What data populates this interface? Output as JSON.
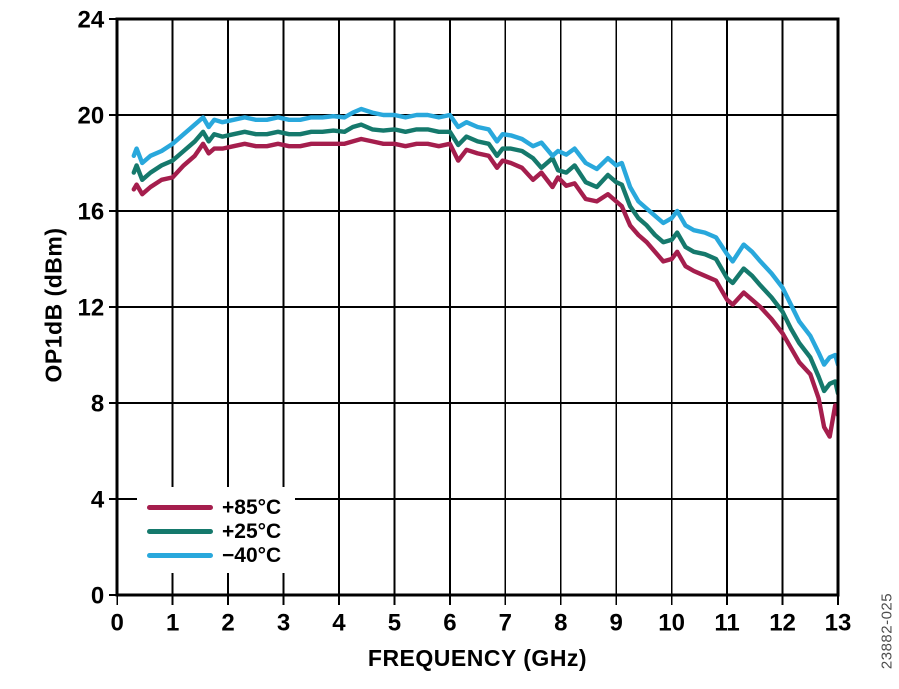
{
  "figure": {
    "watermark_label": "23882-025"
  },
  "chart_data": {
    "type": "line",
    "title": "",
    "xlabel": "FREQUENCY (GHz)",
    "ylabel": "OP1dB (dBm)",
    "xlim": [
      0,
      13
    ],
    "ylim": [
      0,
      24
    ],
    "x_ticks": [
      0,
      1,
      2,
      3,
      4,
      5,
      6,
      7,
      8,
      9,
      10,
      11,
      12,
      13
    ],
    "y_ticks": [
      0,
      4,
      8,
      12,
      16,
      20,
      24
    ],
    "grid": true,
    "legend_position": "lower-left",
    "axis_color": "#000000",
    "x": [
      0.3,
      0.35,
      0.45,
      0.6,
      0.8,
      1,
      1.2,
      1.4,
      1.55,
      1.65,
      1.75,
      1.9,
      2.1,
      2.3,
      2.5,
      2.7,
      2.9,
      3.1,
      3.3,
      3.5,
      3.7,
      3.9,
      4.1,
      4.25,
      4.4,
      4.6,
      4.8,
      5,
      5.2,
      5.4,
      5.6,
      5.8,
      6,
      6.15,
      6.3,
      6.5,
      6.7,
      6.85,
      6.95,
      7.1,
      7.3,
      7.5,
      7.65,
      7.85,
      7.95,
      8.1,
      8.25,
      8.45,
      8.65,
      8.85,
      9,
      9.1,
      9.25,
      9.4,
      9.55,
      9.7,
      9.85,
      10,
      10.1,
      10.25,
      10.4,
      10.6,
      10.8,
      11,
      11.1,
      11.3,
      11.45,
      11.6,
      11.8,
      12,
      12.15,
      12.3,
      12.5,
      12.65,
      12.75,
      12.85,
      12.95,
      13
    ],
    "series": [
      {
        "name": "+85°C",
        "color": "#A51E4D",
        "values": [
          16.9,
          17.1,
          16.7,
          17,
          17.3,
          17.4,
          17.9,
          18.3,
          18.8,
          18.4,
          18.6,
          18.6,
          18.7,
          18.8,
          18.7,
          18.7,
          18.8,
          18.7,
          18.7,
          18.8,
          18.8,
          18.8,
          18.8,
          18.9,
          19,
          18.9,
          18.8,
          18.8,
          18.7,
          18.8,
          18.8,
          18.7,
          18.8,
          18.1,
          18.55,
          18.4,
          18.3,
          17.8,
          18.1,
          18,
          17.8,
          17.3,
          17.6,
          17,
          17.4,
          17.05,
          17.15,
          16.5,
          16.4,
          16.7,
          16.4,
          16.2,
          15.4,
          15,
          14.7,
          14.3,
          13.9,
          14,
          14.3,
          13.7,
          13.5,
          13.3,
          13.1,
          12.3,
          12.1,
          12.6,
          12.3,
          12,
          11.5,
          10.9,
          10.3,
          9.7,
          9.2,
          8.2,
          7,
          6.6,
          7.9,
          7.5
        ]
      },
      {
        "name": "+25°C",
        "color": "#15796C",
        "values": [
          17.6,
          17.9,
          17.3,
          17.6,
          17.9,
          18.1,
          18.5,
          18.9,
          19.3,
          18.9,
          19.2,
          19.1,
          19.2,
          19.3,
          19.2,
          19.2,
          19.3,
          19.2,
          19.2,
          19.3,
          19.3,
          19.35,
          19.3,
          19.5,
          19.6,
          19.4,
          19.35,
          19.4,
          19.3,
          19.4,
          19.4,
          19.3,
          19.3,
          18.75,
          19.1,
          18.9,
          18.8,
          18.3,
          18.6,
          18.6,
          18.5,
          18.2,
          17.8,
          18.2,
          17.7,
          17.6,
          17.9,
          17.2,
          17,
          17.5,
          17.2,
          17.1,
          16.2,
          15.7,
          15.4,
          15,
          14.7,
          14.8,
          15.1,
          14.5,
          14.3,
          14.2,
          14,
          13.2,
          13,
          13.6,
          13.3,
          12.9,
          12.4,
          11.8,
          11.1,
          10.5,
          9.9,
          9.1,
          8.5,
          8.8,
          8.9,
          8.4
        ]
      },
      {
        "name": "−40°C",
        "color": "#29A8DC",
        "values": [
          18.3,
          18.6,
          18,
          18.3,
          18.5,
          18.8,
          19.2,
          19.6,
          19.9,
          19.5,
          19.8,
          19.7,
          19.8,
          19.9,
          19.8,
          19.8,
          19.9,
          19.8,
          19.8,
          19.9,
          19.9,
          19.95,
          19.9,
          20.1,
          20.25,
          20.1,
          20,
          20,
          19.9,
          20,
          20,
          19.9,
          20,
          19.5,
          19.7,
          19.5,
          19.4,
          18.9,
          19.2,
          19.15,
          19,
          18.7,
          18.85,
          18.3,
          18.5,
          18.35,
          18.6,
          18,
          17.75,
          18.2,
          17.9,
          18,
          17,
          16.4,
          16.1,
          15.8,
          15.5,
          15.7,
          16,
          15.4,
          15.2,
          15.1,
          14.9,
          14.2,
          13.9,
          14.6,
          14.3,
          13.9,
          13.4,
          12.8,
          12.1,
          11.4,
          10.8,
          10.1,
          9.6,
          9.9,
          10,
          9.6
        ]
      }
    ]
  }
}
